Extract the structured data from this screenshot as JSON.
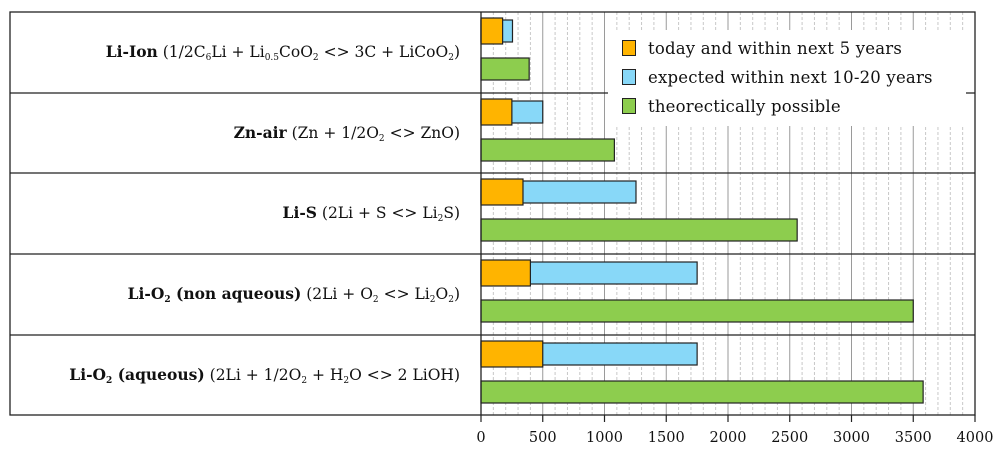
{
  "chart_data": {
    "type": "bar",
    "orientation": "horizontal",
    "categories": [
      {
        "name": "Li-Ion",
        "reaction_parts": [
          " (1/2C",
          "6",
          "Li + Li",
          "0.5",
          "CoO",
          "2",
          " <> 3C + LiCoO",
          "2",
          ")"
        ]
      },
      {
        "name": "Zn-air",
        "reaction_parts": [
          " (Zn + 1/2O",
          "2",
          " <> ZnO)"
        ]
      },
      {
        "name": "Li-S",
        "reaction_parts": [
          " (2Li + S <> Li",
          "2",
          "S)"
        ]
      },
      {
        "name_parts": [
          "Li-O",
          "2",
          " (non aqueous)"
        ],
        "reaction_parts": [
          " (2Li + O",
          "2",
          " <> Li",
          "2",
          "O",
          "2",
          ")"
        ]
      },
      {
        "name_parts": [
          "Li-O",
          "2",
          " (aqueous)"
        ],
        "reaction_parts": [
          " (2Li + 1/2O",
          "2",
          " + H",
          "2",
          "O <> 2 LiOH)"
        ]
      }
    ],
    "series": [
      {
        "name": "today and within next 5 years",
        "color": "#ffb400",
        "values": [
          175,
          250,
          340,
          400,
          500
        ]
      },
      {
        "name": "expected within next 10-20 years",
        "color": "#88d8f8",
        "values": [
          255,
          500,
          1255,
          1750,
          1750
        ]
      },
      {
        "name": "theorectically possible",
        "color": "#8dcd4e",
        "values": [
          390,
          1080,
          2560,
          3500,
          3580
        ]
      }
    ],
    "xlim": [
      0,
      4000
    ],
    "xticks": [
      "0",
      "500",
      "1000",
      "1500",
      "2000",
      "2500",
      "3000",
      "3500",
      "4000"
    ],
    "grid": "vertical dashed every 100, solid every 500",
    "legend_position": "top-right",
    "xlabel": "",
    "ylabel": "",
    "title": ""
  }
}
